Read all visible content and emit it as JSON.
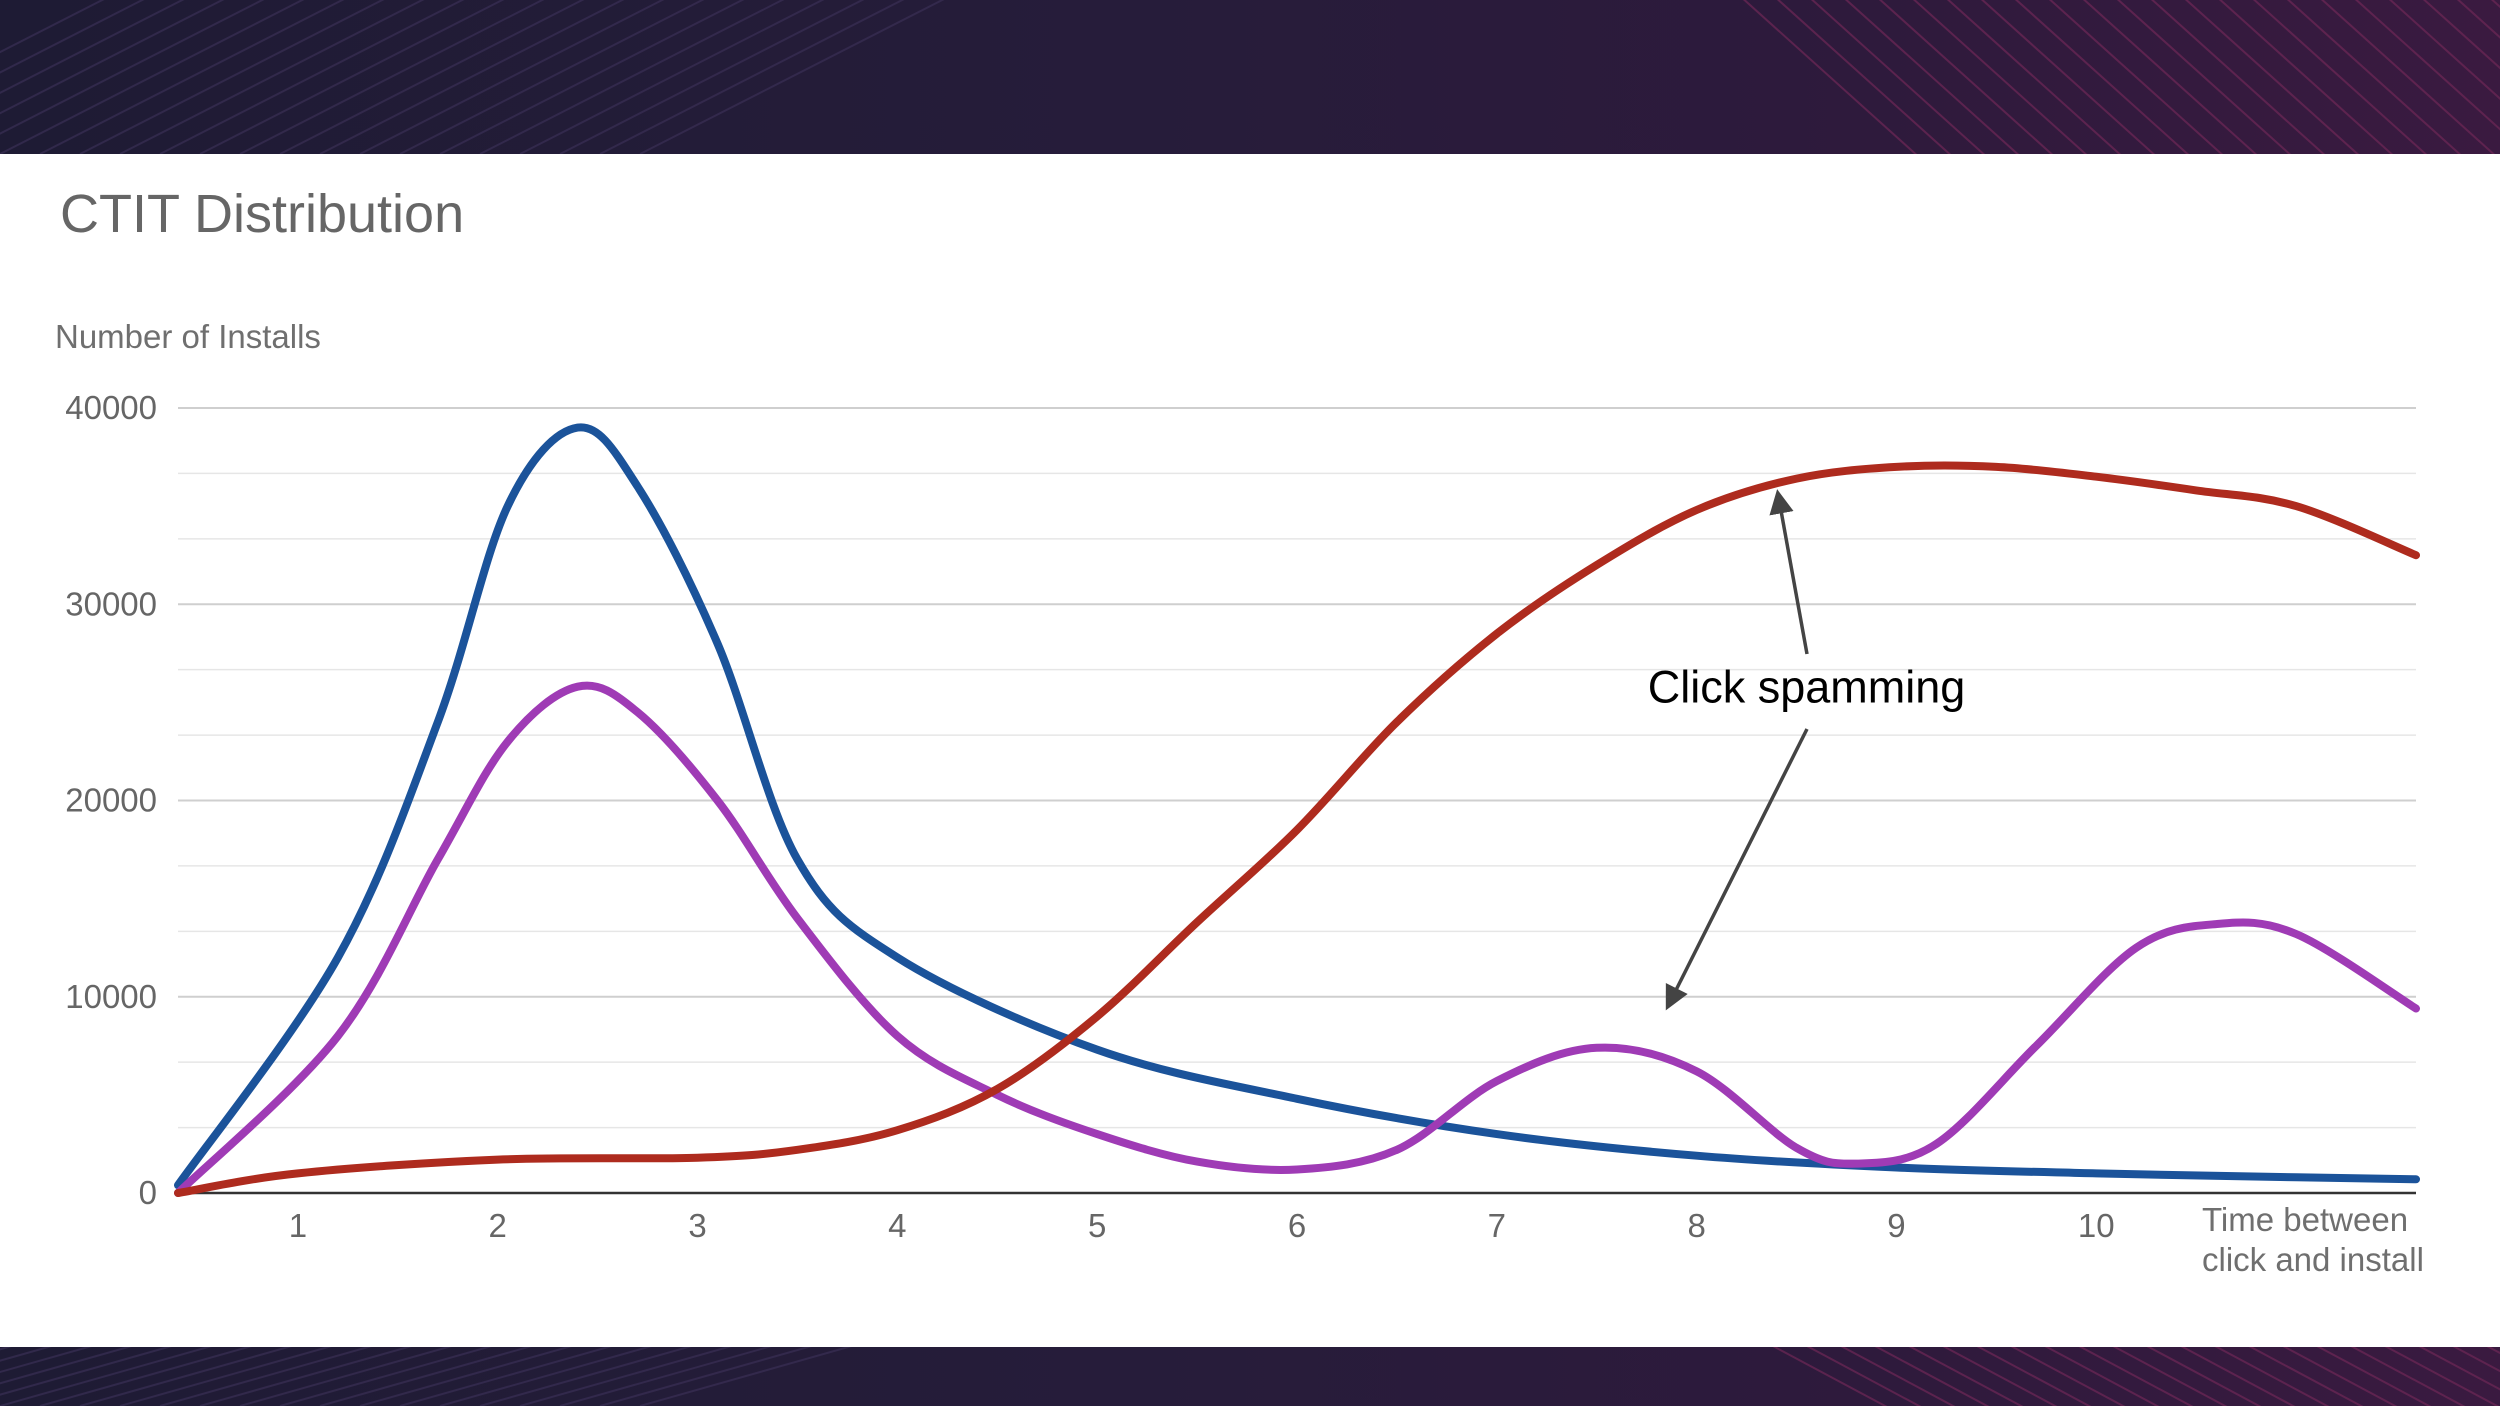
{
  "chart_data": {
    "type": "line",
    "title": "CTIT Distribution",
    "ylabel": "Number of Installs",
    "xlabel": [
      "Time between",
      "click and install"
    ],
    "ylim": [
      0,
      40000
    ],
    "yticks": [
      0,
      10000,
      20000,
      30000,
      40000
    ],
    "xlim": [
      0.4,
      11.6
    ],
    "xticks": [
      1,
      2,
      3,
      4,
      5,
      6,
      7,
      8,
      9,
      10
    ],
    "grid": true,
    "legend": "none",
    "annotation": {
      "text": "Click spamming",
      "x": 8.55,
      "y": 25000
    },
    "colors": [
      "#1b539a",
      "#9f3bb5",
      "#ae2b1e"
    ],
    "series": [
      {
        "color": "#1b539a",
        "x": [
          0.4,
          1.2,
          1.7,
          2.05,
          2.4,
          2.7,
          3.1,
          3.5,
          4.0,
          5.0,
          6.0,
          7.0,
          8.0,
          9.0,
          10.0,
          11.0,
          11.6
        ],
        "y": [
          400,
          12000,
          24000,
          35000,
          39000,
          36000,
          28000,
          17000,
          12000,
          7300,
          4800,
          3000,
          1900,
          1300,
          1000,
          800,
          700
        ]
      },
      {
        "color": "#9f3bb5",
        "x": [
          0.4,
          1.2,
          1.7,
          2.05,
          2.4,
          2.7,
          3.1,
          3.5,
          4.0,
          4.5,
          5.0,
          5.5,
          6.0,
          6.5,
          7.0,
          7.5,
          8.0,
          8.5,
          8.8,
          9.2,
          9.7,
          10.2,
          10.6,
          11.0,
          11.6
        ],
        "y": [
          0,
          8000,
          17000,
          23000,
          25800,
          24500,
          20000,
          14000,
          8000,
          5000,
          3000,
          1600,
          1200,
          2200,
          5700,
          7400,
          6200,
          2300,
          1500,
          2500,
          7500,
          12500,
          13700,
          13200,
          9400
        ]
      },
      {
        "color": "#ae2b1e",
        "x": [
          0.4,
          1.0,
          2.0,
          3.0,
          3.5,
          4.0,
          4.5,
          5.0,
          5.5,
          6.0,
          6.5,
          7.0,
          7.5,
          8.0,
          8.5,
          9.0,
          9.5,
          10.0,
          10.5,
          11.0,
          11.6
        ],
        "y": [
          0,
          1000,
          1700,
          1800,
          2200,
          3200,
          5300,
          9000,
          13800,
          18500,
          24000,
          28500,
          32000,
          34800,
          36400,
          37000,
          37000,
          36500,
          35800,
          35000,
          32500
        ]
      }
    ]
  }
}
